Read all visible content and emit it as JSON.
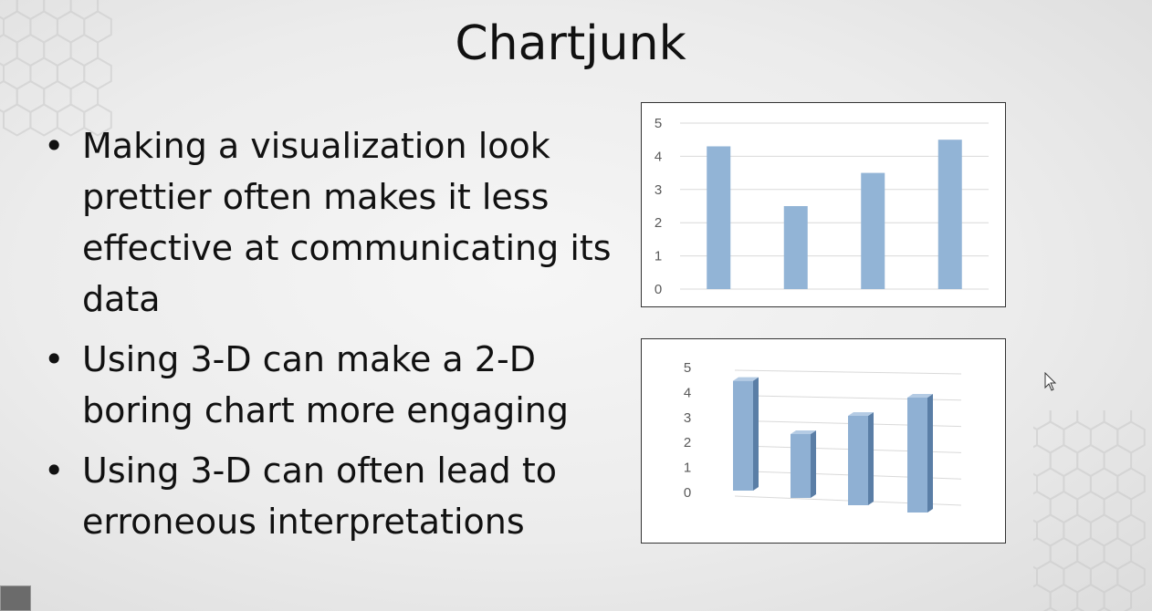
{
  "slide": {
    "title": "Chartjunk",
    "bullets": [
      "Making a visualization look prettier often makes it less effective at communicating its data",
      "Using 3-D can make a 2-D boring chart more engaging",
      "Using 3-D can often lead to erroneous interpretations"
    ]
  },
  "chart_data": [
    {
      "type": "bar",
      "categories": [
        "",
        "",
        "",
        ""
      ],
      "values": [
        4.3,
        2.5,
        3.5,
        4.5
      ],
      "ylim": [
        0,
        5
      ],
      "yticks": [
        "0",
        "1",
        "2",
        "3",
        "4",
        "5"
      ],
      "grid": true,
      "bar_color": "#92b4d6",
      "style": "2d"
    },
    {
      "type": "bar",
      "categories": [
        "",
        "",
        "",
        ""
      ],
      "values": [
        4.3,
        2.5,
        3.5,
        4.5
      ],
      "ylim": [
        0,
        5
      ],
      "yticks": [
        "0",
        "1",
        "2",
        "3",
        "4",
        "5"
      ],
      "grid": true,
      "bar_color": "#92b4d6",
      "style": "3d"
    }
  ]
}
